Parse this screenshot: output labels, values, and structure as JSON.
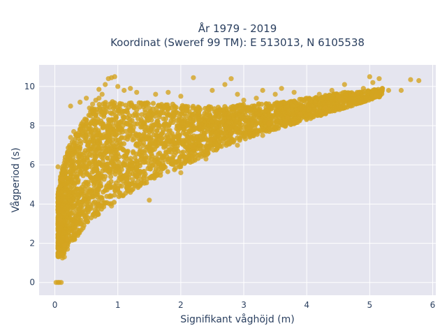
{
  "chart_data": {
    "type": "scatter",
    "title_line1": "År 1979 - 2019",
    "title_line2": "Koordinat (Sweref 99 TM): E 513013, N 6105538",
    "xlabel": "Signifikant våghöjd (m)",
    "ylabel": "Vågperiod (s)",
    "xlim": [
      -0.25,
      6.05
    ],
    "ylim": [
      -0.65,
      11.1
    ],
    "xticks": [
      0,
      1,
      2,
      3,
      4,
      5,
      6
    ],
    "yticks": [
      0,
      2,
      4,
      6,
      8,
      10
    ],
    "grid": true,
    "marker_color": "#d4a420",
    "plot_background": "#e5e5ef",
    "grid_color": "#ffffff",
    "points": [
      [
        0.02,
        0.0
      ],
      [
        0.05,
        0.0
      ],
      [
        0.07,
        0.0
      ],
      [
        0.1,
        0.0
      ],
      [
        0.05,
        1.5
      ],
      [
        0.06,
        1.7
      ],
      [
        0.1,
        1.4
      ],
      [
        0.12,
        1.25
      ],
      [
        0.15,
        1.3
      ],
      [
        0.2,
        1.7
      ],
      [
        0.08,
        3.2
      ],
      [
        0.05,
        5.9
      ],
      [
        0.1,
        5.3
      ],
      [
        0.15,
        6.1
      ],
      [
        0.2,
        6.5
      ],
      [
        0.25,
        7.4
      ],
      [
        0.3,
        7.7
      ],
      [
        0.35,
        7.5
      ],
      [
        0.4,
        7.8
      ],
      [
        0.45,
        8.2
      ],
      [
        0.5,
        8.3
      ],
      [
        0.55,
        8.9
      ],
      [
        0.6,
        9.1
      ],
      [
        0.65,
        9.3
      ],
      [
        0.7,
        9.4
      ],
      [
        0.75,
        9.6
      ],
      [
        0.8,
        10.1
      ],
      [
        0.85,
        10.4
      ],
      [
        0.9,
        10.45
      ],
      [
        0.95,
        10.5
      ],
      [
        1.0,
        10.0
      ],
      [
        1.1,
        9.8
      ],
      [
        1.2,
        9.9
      ],
      [
        1.3,
        9.7
      ],
      [
        0.25,
        9.0
      ],
      [
        0.4,
        9.2
      ],
      [
        0.5,
        9.4
      ],
      [
        0.7,
        9.85
      ],
      [
        1.6,
        9.6
      ],
      [
        1.8,
        9.7
      ],
      [
        2.0,
        9.5
      ],
      [
        2.2,
        10.45
      ],
      [
        2.5,
        9.8
      ],
      [
        2.7,
        10.1
      ],
      [
        2.8,
        10.4
      ],
      [
        2.9,
        9.6
      ],
      [
        3.0,
        9.3
      ],
      [
        3.2,
        9.4
      ],
      [
        3.5,
        9.6
      ],
      [
        3.3,
        9.8
      ],
      [
        3.6,
        9.9
      ],
      [
        3.8,
        9.7
      ],
      [
        4.0,
        9.4
      ],
      [
        4.2,
        9.6
      ],
      [
        4.4,
        9.8
      ],
      [
        4.5,
        9.5
      ],
      [
        4.6,
        10.1
      ],
      [
        4.8,
        9.7
      ],
      [
        4.9,
        9.9
      ],
      [
        5.0,
        10.5
      ],
      [
        5.05,
        10.2
      ],
      [
        5.15,
        10.4
      ],
      [
        5.2,
        9.9
      ],
      [
        5.5,
        9.8
      ],
      [
        5.65,
        10.35
      ],
      [
        5.78,
        10.3
      ],
      [
        4.3,
        8.9
      ],
      [
        4.1,
        8.7
      ],
      [
        4.55,
        9.3
      ],
      [
        4.75,
        9.6
      ],
      [
        3.9,
        8.6
      ],
      [
        3.7,
        8.4
      ],
      [
        3.4,
        8.1
      ],
      [
        3.1,
        7.9
      ],
      [
        2.8,
        7.6
      ],
      [
        2.5,
        7.3
      ],
      [
        2.2,
        6.9
      ],
      [
        1.9,
        6.5
      ],
      [
        1.6,
        6.0
      ],
      [
        1.3,
        5.4
      ],
      [
        1.0,
        4.8
      ],
      [
        0.7,
        4.0
      ],
      [
        0.5,
        3.4
      ],
      [
        0.3,
        2.6
      ],
      [
        0.2,
        2.2
      ],
      [
        0.15,
        1.9
      ],
      [
        1.5,
        4.2
      ],
      [
        1.2,
        4.6
      ],
      [
        0.9,
        3.9
      ],
      [
        2.0,
        5.6
      ],
      [
        2.4,
        6.3
      ],
      [
        2.9,
        7.0
      ],
      [
        3.3,
        7.5
      ],
      [
        3.8,
        8.1
      ],
      [
        4.3,
        8.6
      ],
      [
        4.7,
        9.0
      ],
      [
        5.1,
        9.5
      ],
      [
        5.3,
        9.8
      ]
    ],
    "bands": [
      {
        "x": 0.05,
        "ymin": 1.3,
        "ymax": 4.6
      },
      {
        "x": 0.1,
        "ymin": 1.3,
        "ymax": 5.6
      },
      {
        "x": 0.15,
        "ymin": 1.5,
        "ymax": 6.2
      },
      {
        "x": 0.2,
        "ymin": 1.7,
        "ymax": 6.8
      },
      {
        "x": 0.3,
        "ymin": 2.1,
        "ymax": 7.4
      },
      {
        "x": 0.4,
        "ymin": 2.5,
        "ymax": 8.0
      },
      {
        "x": 0.5,
        "ymin": 2.9,
        "ymax": 8.5
      },
      {
        "x": 0.6,
        "ymin": 3.2,
        "ymax": 8.9
      },
      {
        "x": 0.7,
        "ymin": 3.5,
        "ymax": 9.1
      },
      {
        "x": 0.8,
        "ymin": 3.7,
        "ymax": 9.2
      },
      {
        "x": 0.9,
        "ymin": 3.9,
        "ymax": 9.3
      },
      {
        "x": 1.0,
        "ymin": 4.2,
        "ymax": 9.3
      },
      {
        "x": 1.2,
        "ymin": 4.6,
        "ymax": 9.2
      },
      {
        "x": 1.4,
        "ymin": 5.0,
        "ymax": 9.2
      },
      {
        "x": 1.6,
        "ymin": 5.3,
        "ymax": 9.2
      },
      {
        "x": 1.8,
        "ymin": 5.6,
        "ymax": 9.1
      },
      {
        "x": 2.0,
        "ymin": 5.9,
        "ymax": 9.1
      },
      {
        "x": 2.2,
        "ymin": 6.2,
        "ymax": 9.0
      },
      {
        "x": 2.4,
        "ymin": 6.5,
        "ymax": 9.0
      },
      {
        "x": 2.6,
        "ymin": 6.8,
        "ymax": 9.0
      },
      {
        "x": 2.8,
        "ymin": 7.1,
        "ymax": 9.0
      },
      {
        "x": 3.0,
        "ymin": 7.3,
        "ymax": 9.1
      },
      {
        "x": 3.2,
        "ymin": 7.5,
        "ymax": 9.1
      },
      {
        "x": 3.4,
        "ymin": 7.7,
        "ymax": 9.2
      },
      {
        "x": 3.6,
        "ymin": 7.9,
        "ymax": 9.2
      },
      {
        "x": 3.8,
        "ymin": 8.1,
        "ymax": 9.3
      },
      {
        "x": 4.0,
        "ymin": 8.3,
        "ymax": 9.4
      },
      {
        "x": 4.2,
        "ymin": 8.5,
        "ymax": 9.5
      },
      {
        "x": 4.4,
        "ymin": 8.7,
        "ymax": 9.6
      },
      {
        "x": 4.6,
        "ymin": 8.9,
        "ymax": 9.7
      },
      {
        "x": 4.8,
        "ymin": 9.1,
        "ymax": 9.7
      },
      {
        "x": 5.0,
        "ymin": 9.3,
        "ymax": 9.8
      },
      {
        "x": 5.2,
        "ymin": 9.5,
        "ymax": 9.9
      }
    ]
  }
}
